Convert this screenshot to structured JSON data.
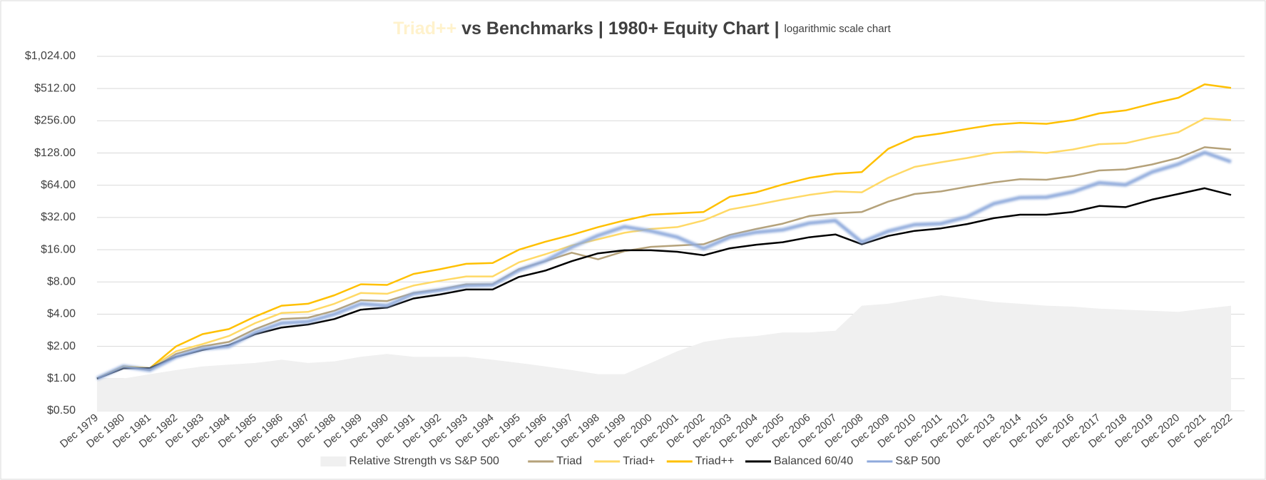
{
  "chart_data": {
    "type": "line",
    "title_highlight": "Triad++",
    "title": " vs Benchmarks | 1980+ Equity Chart | ",
    "subtitle": "logarithmic scale chart",
    "yscale": "log",
    "ylim": [
      0.5,
      1024
    ],
    "yticks": [
      {
        "value": 0.5,
        "label": "$0.50"
      },
      {
        "value": 1,
        "label": "$1.00"
      },
      {
        "value": 2,
        "label": "$2.00"
      },
      {
        "value": 4,
        "label": "$4.00"
      },
      {
        "value": 8,
        "label": "$8.00"
      },
      {
        "value": 16,
        "label": "$16.00"
      },
      {
        "value": 32,
        "label": "$32.00"
      },
      {
        "value": 64,
        "label": "$64.00"
      },
      {
        "value": 128,
        "label": "$128.00"
      },
      {
        "value": 256,
        "label": "$256.00"
      },
      {
        "value": 512,
        "label": "$512.00"
      },
      {
        "value": 1024,
        "label": "$1,024.00"
      }
    ],
    "grid": true,
    "legend": "bottom",
    "categories": [
      "Dec 1979",
      "Dec 1980",
      "Dec 1981",
      "Dec 1982",
      "Dec 1983",
      "Dec 1984",
      "Dec 1985",
      "Dec 1986",
      "Dec 1987",
      "Dec 1988",
      "Dec 1989",
      "Dec 1990",
      "Dec 1991",
      "Dec 1992",
      "Dec 1993",
      "Dec 1994",
      "Dec 1995",
      "Dec 1996",
      "Dec 1997",
      "Dec 1998",
      "Dec 1999",
      "Dec 2000",
      "Dec 2001",
      "Dec 2002",
      "Dec 2003",
      "Dec 2004",
      "Dec 2005",
      "Dec 2006",
      "Dec 2007",
      "Dec 2008",
      "Dec 2009",
      "Dec 2010",
      "Dec 2011",
      "Dec 2012",
      "Dec 2013",
      "Dec 2014",
      "Dec 2015",
      "Dec 2016",
      "Dec 2017",
      "Dec 2018",
      "Dec 2019",
      "Dec 2020",
      "Dec 2021",
      "Dec 2022"
    ],
    "series": [
      {
        "name": "Relative Strength vs S&P 500",
        "type": "area",
        "color": "#f0f0f0",
        "values": [
          1,
          1.0,
          1.1,
          1.2,
          1.3,
          1.35,
          1.4,
          1.5,
          1.4,
          1.45,
          1.6,
          1.7,
          1.6,
          1.6,
          1.6,
          1.5,
          1.4,
          1.3,
          1.2,
          1.1,
          1.1,
          1.4,
          1.8,
          2.2,
          2.4,
          2.5,
          2.7,
          2.7,
          2.8,
          4.8,
          5.0,
          5.5,
          6.0,
          5.6,
          5.2,
          5.0,
          4.8,
          4.7,
          4.5,
          4.4,
          4.3,
          4.2,
          4.5,
          4.8
        ]
      },
      {
        "name": "Triad",
        "color": "#b5a27a",
        "values": [
          1,
          1.3,
          1.2,
          1.7,
          2.0,
          2.2,
          2.9,
          3.6,
          3.7,
          4.3,
          5.4,
          5.3,
          6.3,
          6.8,
          7.6,
          7.6,
          10.5,
          12.5,
          15,
          13,
          15.5,
          17,
          17.5,
          18,
          22,
          25,
          28,
          33,
          35,
          36,
          45,
          53,
          56,
          62,
          68,
          73,
          72,
          78,
          88,
          90,
          100,
          115,
          145,
          138
        ]
      },
      {
        "name": "Triad+",
        "color": "#ffd966",
        "values": [
          1,
          1.3,
          1.25,
          1.8,
          2.1,
          2.5,
          3.3,
          4.1,
          4.2,
          5.0,
          6.3,
          6.2,
          7.4,
          8.2,
          9.0,
          9.0,
          12.2,
          14.5,
          17.5,
          20,
          23,
          25,
          26,
          30,
          38,
          42,
          47,
          52,
          56,
          55,
          75,
          95,
          105,
          115,
          128,
          132,
          128,
          138,
          155,
          158,
          180,
          200,
          270,
          260
        ]
      },
      {
        "name": "Triad++",
        "color": "#ffc000",
        "values": [
          1,
          1.3,
          1.25,
          2.0,
          2.6,
          2.9,
          3.8,
          4.8,
          5.0,
          6.0,
          7.6,
          7.5,
          9.5,
          10.5,
          11.8,
          12,
          16,
          19,
          22,
          26,
          30,
          34,
          35,
          36,
          50,
          55,
          65,
          75,
          82,
          85,
          140,
          180,
          195,
          215,
          235,
          245,
          240,
          260,
          300,
          320,
          370,
          420,
          560,
          520
        ]
      },
      {
        "name": "Balanced 60/40",
        "color": "#000000",
        "values": [
          1,
          1.25,
          1.25,
          1.6,
          1.85,
          2.05,
          2.6,
          3.0,
          3.2,
          3.6,
          4.4,
          4.6,
          5.6,
          6.1,
          6.8,
          6.8,
          8.9,
          10.2,
          12.5,
          14.8,
          15.8,
          15.8,
          15.3,
          14.2,
          16.5,
          17.8,
          18.8,
          20.9,
          22.2,
          18,
          21.5,
          24,
          25.3,
          27.8,
          31.5,
          34,
          34,
          36,
          41,
          40,
          47,
          53,
          60,
          52
        ]
      },
      {
        "name": "S&P 500",
        "color": "#8faadc",
        "values": [
          1,
          1.3,
          1.2,
          1.6,
          1.9,
          2.0,
          2.7,
          3.3,
          3.4,
          4.0,
          5.0,
          4.8,
          6.2,
          6.7,
          7.4,
          7.5,
          10.3,
          12.6,
          16.9,
          21.7,
          26.2,
          23.9,
          21,
          16.4,
          21,
          23.3,
          24.5,
          28.3,
          29.9,
          18.8,
          23.8,
          27.4,
          28,
          32.5,
          43,
          49,
          49.5,
          55.5,
          67.6,
          64.6,
          85,
          100.6,
          129.5,
          106
        ]
      }
    ]
  }
}
